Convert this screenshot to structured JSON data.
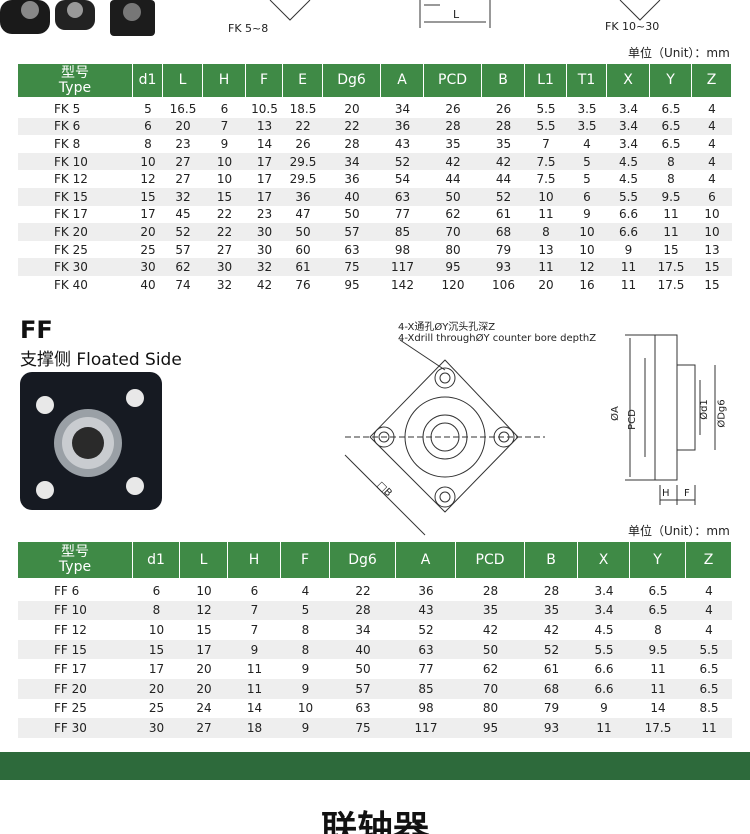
{
  "top": {
    "fk58_label": "FK 5~8",
    "l_label": "L",
    "fk1030_label": "FK 10~30"
  },
  "fk_table": {
    "unit": "单位（Unit）：mm",
    "header": [
      [
        "型号",
        "Type"
      ],
      "d1",
      "L",
      "H",
      "F",
      "E",
      "Dg6",
      "A",
      "PCD",
      "B",
      "L1",
      "T1",
      "X",
      "Y",
      "Z"
    ],
    "rows": [
      [
        "FK 5",
        "5",
        "16.5",
        "6",
        "10.5",
        "18.5",
        "20",
        "34",
        "26",
        "26",
        "5.5",
        "3.5",
        "3.4",
        "6.5",
        "4"
      ],
      [
        "FK 6",
        "6",
        "20",
        "7",
        "13",
        "22",
        "22",
        "36",
        "28",
        "28",
        "5.5",
        "3.5",
        "3.4",
        "6.5",
        "4"
      ],
      [
        "FK 8",
        "8",
        "23",
        "9",
        "14",
        "26",
        "28",
        "43",
        "35",
        "35",
        "7",
        "4",
        "3.4",
        "6.5",
        "4"
      ],
      [
        "FK 10",
        "10",
        "27",
        "10",
        "17",
        "29.5",
        "34",
        "52",
        "42",
        "42",
        "7.5",
        "5",
        "4.5",
        "8",
        "4"
      ],
      [
        "FK 12",
        "12",
        "27",
        "10",
        "17",
        "29.5",
        "36",
        "54",
        "44",
        "44",
        "7.5",
        "5",
        "4.5",
        "8",
        "4"
      ],
      [
        "FK 15",
        "15",
        "32",
        "15",
        "17",
        "36",
        "40",
        "63",
        "50",
        "52",
        "10",
        "6",
        "5.5",
        "9.5",
        "6"
      ],
      [
        "FK 17",
        "17",
        "45",
        "22",
        "23",
        "47",
        "50",
        "77",
        "62",
        "61",
        "11",
        "9",
        "6.6",
        "11",
        "10"
      ],
      [
        "FK 20",
        "20",
        "52",
        "22",
        "30",
        "50",
        "57",
        "85",
        "70",
        "68",
        "8",
        "10",
        "6.6",
        "11",
        "10"
      ],
      [
        "FK 25",
        "25",
        "57",
        "27",
        "30",
        "60",
        "63",
        "98",
        "80",
        "79",
        "13",
        "10",
        "9",
        "15",
        "13"
      ],
      [
        "FK 30",
        "30",
        "62",
        "30",
        "32",
        "61",
        "75",
        "117",
        "95",
        "93",
        "11",
        "12",
        "11",
        "17.5",
        "15"
      ],
      [
        "FK 40",
        "40",
        "74",
        "32",
        "42",
        "76",
        "95",
        "142",
        "120",
        "106",
        "20",
        "16",
        "11",
        "17.5",
        "15"
      ]
    ]
  },
  "ff_section": {
    "code": "FF",
    "title": "支撑侧 Floated Side",
    "note_cn": "4-X通孔ØY沉头孔深Z",
    "note_en": "4-Xdrill throughØY counter bore depthZ",
    "dims": {
      "a": "ØA",
      "pcd": "PCD",
      "b": "□B",
      "d1": "Ød1",
      "dg6": "ØDg6",
      "h": "H",
      "f": "F"
    }
  },
  "ff_table": {
    "unit": "单位（Unit）：mm",
    "header": [
      [
        "型号",
        "Type"
      ],
      "d1",
      "L",
      "H",
      "F",
      "Dg6",
      "A",
      "PCD",
      "B",
      "X",
      "Y",
      "Z"
    ],
    "rows": [
      [
        "FF 6",
        "6",
        "10",
        "6",
        "4",
        "22",
        "36",
        "28",
        "28",
        "3.4",
        "6.5",
        "4"
      ],
      [
        "FF 10",
        "8",
        "12",
        "7",
        "5",
        "28",
        "43",
        "35",
        "35",
        "3.4",
        "6.5",
        "4"
      ],
      [
        "FF 12",
        "10",
        "15",
        "7",
        "8",
        "34",
        "52",
        "42",
        "42",
        "4.5",
        "8",
        "4"
      ],
      [
        "FF 15",
        "15",
        "17",
        "9",
        "8",
        "40",
        "63",
        "50",
        "52",
        "5.5",
        "9.5",
        "5.5"
      ],
      [
        "FF 17",
        "17",
        "20",
        "11",
        "9",
        "50",
        "77",
        "62",
        "61",
        "6.6",
        "11",
        "6.5"
      ],
      [
        "FF 20",
        "20",
        "20",
        "11",
        "9",
        "57",
        "85",
        "70",
        "68",
        "6.6",
        "11",
        "6.5"
      ],
      [
        "FF 25",
        "25",
        "24",
        "14",
        "10",
        "63",
        "98",
        "80",
        "79",
        "9",
        "14",
        "8.5"
      ],
      [
        "FF 30",
        "30",
        "27",
        "18",
        "9",
        "75",
        "117",
        "95",
        "93",
        "11",
        "17.5",
        "11"
      ]
    ]
  },
  "footer": {
    "heading": "联轴器"
  }
}
